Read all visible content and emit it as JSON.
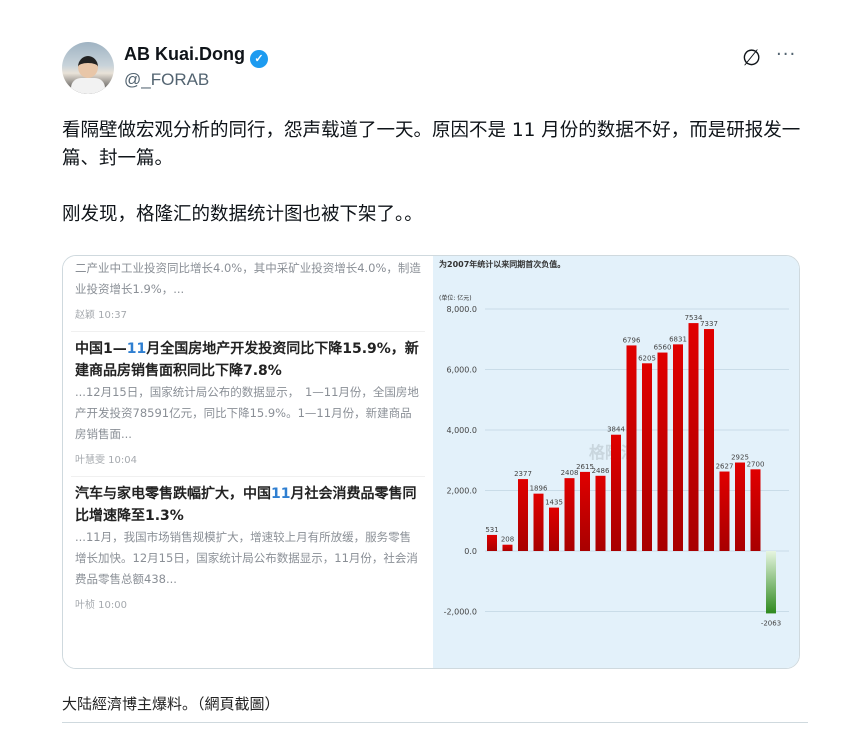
{
  "author": {
    "name": "AB Kuai.Dong",
    "handle": "@_FORAB",
    "verified": true
  },
  "icons": {
    "verified": "verified-badge-icon",
    "grok": "grok-icon",
    "more": "more-icon"
  },
  "tweet": {
    "paragraphs": [
      "看隔壁做宏观分析的同行，怨声载道了一天。原因不是 11 月份的数据不好，而是研报发一篇、封一篇。",
      "刚发现，格隆汇的数据统计图也被下架了。。"
    ]
  },
  "news": {
    "top_snippet": "二产业中工业投资同比增长4.0%，其中采矿业投资增长4.0%，制造业投资增长1.9%，...",
    "top_meta": "赵颖 10:37",
    "items": [
      {
        "title_pre": "中国1—",
        "title_hl": "11",
        "title_post": "月全国房地产开发投资同比下降15.9%，新建商品房销售面积同比下降7.8%",
        "snippet": "...12月15日，国家统计局公布的数据显示，　1—11月份，全国房地产开发投资78591亿元，同比下降15.9%。1—11月份，新建商品房销售面...",
        "meta": "叶慧雯 10:04"
      },
      {
        "title_pre": "汽车与家电零售跌幅扩大，中国",
        "title_hl": "11",
        "title_post": "月社会消费品零售同比增速降至1.3%",
        "snippet": "...11月，我国市场销售规模扩大，增速较上月有所放缓，服务零售增长加快。12月15日，国家统计局公布数据显示，11月份，社会消费品零售总额438...",
        "meta": "叶桢 10:00"
      }
    ]
  },
  "chart_data": {
    "type": "bar",
    "title": "为2007年统计以来同期首次负值。",
    "ylabel": "(单位: 亿元)",
    "watermark": "格隆汇",
    "ylim": [
      -2500,
      8500
    ],
    "yticks": [
      "8,000.0",
      "6,000.0",
      "4,000.0",
      "2,000.0",
      "0.0",
      "-2,000.0"
    ],
    "ytick_values": [
      8000,
      6000,
      4000,
      2000,
      0,
      -2000
    ],
    "values": [
      531,
      208,
      2377,
      1896,
      1435,
      2408,
      2615,
      2486,
      3844,
      6796,
      6205,
      6560,
      6831,
      7534,
      7337,
      2627,
      2925,
      2700,
      -2063
    ],
    "colors": {
      "positive": "#d40000",
      "negative": "#3a9a2a"
    },
    "grid": true
  },
  "caption": "大陆經濟博主爆料。（網頁截圖）"
}
